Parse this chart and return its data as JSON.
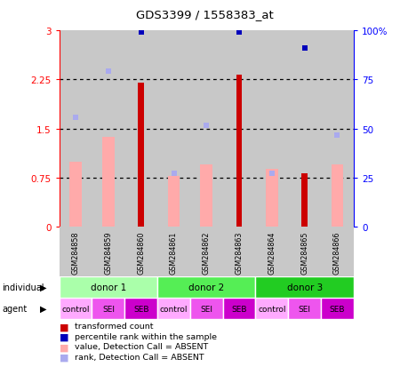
{
  "title": "GDS3399 / 1558383_at",
  "samples": [
    "GSM284858",
    "GSM284859",
    "GSM284860",
    "GSM284861",
    "GSM284862",
    "GSM284863",
    "GSM284864",
    "GSM284865",
    "GSM284866"
  ],
  "red_bars": [
    null,
    null,
    2.2,
    null,
    null,
    2.32,
    null,
    0.82,
    null
  ],
  "pink_bars": [
    1.0,
    1.38,
    null,
    0.78,
    0.95,
    null,
    0.88,
    null,
    0.95
  ],
  "blue_squares_left": [
    null,
    null,
    2.97,
    null,
    null,
    2.98,
    null,
    2.73,
    null
  ],
  "lightblue_squares_left": [
    1.67,
    2.38,
    null,
    0.82,
    1.55,
    null,
    0.82,
    null,
    1.4
  ],
  "ylim_left": [
    0,
    3
  ],
  "ylim_right": [
    0,
    100
  ],
  "yticks_left": [
    0,
    0.75,
    1.5,
    2.25,
    3
  ],
  "yticks_right": [
    0,
    25,
    50,
    75,
    100
  ],
  "ytick_labels_left": [
    "0",
    "0.75",
    "1.5",
    "2.25",
    "3"
  ],
  "ytick_labels_right": [
    "0",
    "25",
    "50",
    "75",
    "100%"
  ],
  "hlines": [
    0.75,
    1.5,
    2.25
  ],
  "donors": [
    {
      "label": "donor 1",
      "cols": [
        0,
        1,
        2
      ],
      "color": "#aaffaa"
    },
    {
      "label": "donor 2",
      "cols": [
        3,
        4,
        5
      ],
      "color": "#55ee55"
    },
    {
      "label": "donor 3",
      "cols": [
        6,
        7,
        8
      ],
      "color": "#22cc22"
    }
  ],
  "agents": [
    "control",
    "SEI",
    "SEB",
    "control",
    "SEI",
    "SEB",
    "control",
    "SEI",
    "SEB"
  ],
  "agent_color_map": {
    "control": "#ffaaff",
    "SEI": "#ee55ee",
    "SEB": "#cc00cc"
  },
  "col_bg": "#c8c8c8",
  "red_bar_color": "#cc0000",
  "pink_bar_color": "#ffaaaa",
  "blue_sq_color": "#0000bb",
  "lightblue_sq_color": "#aaaaee",
  "legend_items": [
    {
      "color": "#cc0000",
      "label": "transformed count"
    },
    {
      "color": "#0000bb",
      "label": "percentile rank within the sample"
    },
    {
      "color": "#ffaaaa",
      "label": "value, Detection Call = ABSENT"
    },
    {
      "color": "#aaaaee",
      "label": "rank, Detection Call = ABSENT"
    }
  ]
}
